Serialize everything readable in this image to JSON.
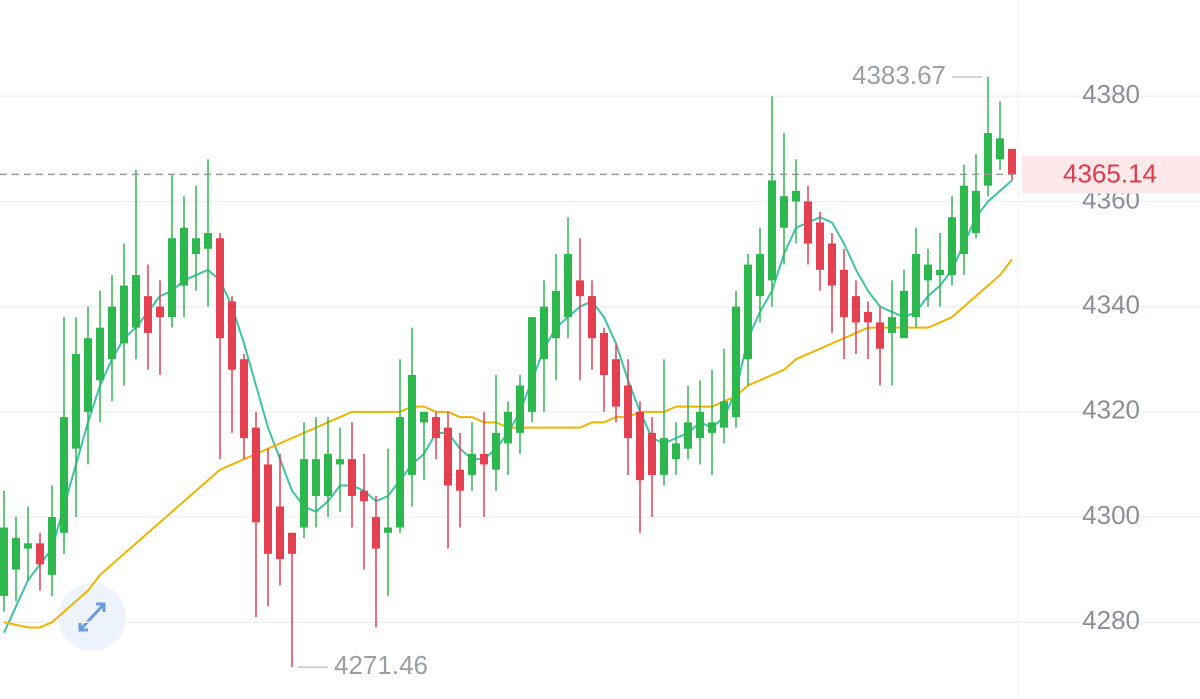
{
  "chart_data": {
    "type": "candlestick",
    "ylim": [
      4265.4,
      4398.3
    ],
    "yticks": [
      4280,
      4300,
      4320,
      4340,
      4360,
      4380
    ],
    "grid": true,
    "up_color": "#2db84d",
    "down_color": "#e5404f",
    "open": [
      4285,
      4290,
      4294,
      4295,
      4289,
      4297,
      4313,
      4320,
      4326,
      4330,
      4333,
      4336,
      4342,
      4340,
      4338,
      4344,
      4350,
      4351,
      4353,
      4341,
      4330,
      4317,
      4310,
      4302,
      4297,
      4298,
      4304,
      4304,
      4310,
      4311,
      4305,
      4300,
      4297,
      4298,
      4308,
      4318,
      4319,
      4317,
      4309,
      4308,
      4312,
      4309,
      4314,
      4316,
      4320,
      4330,
      4334,
      4338,
      4345,
      4342,
      4335,
      4330,
      4325,
      4320,
      4316,
      4308,
      4311,
      4313,
      4315,
      4316,
      4317,
      4319,
      4330,
      4342,
      4345,
      4355,
      4360,
      4360,
      4356,
      4352,
      4347,
      4342,
      4339,
      4337,
      4335,
      4334,
      4338,
      4345,
      4346,
      4346,
      4350,
      4354,
      4363,
      4368,
      4370
    ],
    "high": [
      4305,
      4300,
      4302,
      4297,
      4306,
      4338,
      4338,
      4340,
      4343,
      4346,
      4352,
      4366,
      4348,
      4345,
      4365,
      4361,
      4363,
      4368,
      4354,
      4342,
      4331,
      4320,
      4313,
      4312,
      4297,
      4318,
      4319,
      4319,
      4317,
      4318,
      4312,
      4304,
      4313,
      4330,
      4336,
      4320,
      4320,
      4320,
      4316,
      4318,
      4320,
      4327,
      4322,
      4327,
      4338,
      4345,
      4350,
      4357,
      4353,
      4345,
      4336,
      4333,
      4330,
      4322,
      4319,
      4330,
      4318,
      4325,
      4326,
      4328,
      4332,
      4343,
      4350,
      4355,
      4380,
      4373,
      4368,
      4363,
      4358,
      4354,
      4351,
      4345,
      4341,
      4340,
      4345,
      4347,
      4355,
      4351,
      4354,
      4361,
      4367,
      4369,
      4383.67,
      4379,
      4370
    ],
    "low": [
      4282,
      4284,
      4288,
      4286,
      4285,
      4293,
      4300,
      4310,
      4318,
      4322,
      4325,
      4330,
      4328,
      4327,
      4336,
      4338,
      4343,
      4340,
      4311,
      4316,
      4311,
      4281,
      4283,
      4287,
      4271.46,
      4296,
      4298,
      4300,
      4301,
      4298,
      4290,
      4279,
      4285,
      4297,
      4302,
      4307,
      4311,
      4294,
      4298,
      4305,
      4300,
      4305,
      4308,
      4312,
      4318,
      4320,
      4326,
      4334,
      4326,
      4328,
      4320,
      4318,
      4308,
      4297,
      4300,
      4306,
      4308,
      4311,
      4310,
      4308,
      4314,
      4317,
      4325,
      4337,
      4340,
      4348,
      4352,
      4348,
      4343,
      4335,
      4330,
      4331,
      4330,
      4325,
      4325,
      4334,
      4336,
      4340,
      4340,
      4344,
      4346,
      4353,
      4361,
      4366,
      4364
    ],
    "close": [
      4298,
      4296,
      4295,
      4291,
      4300,
      4319,
      4331,
      4334,
      4336,
      4340,
      4344,
      4346,
      4335,
      4338,
      4353,
      4355,
      4353,
      4354,
      4334,
      4328,
      4315,
      4299,
      4293,
      4292,
      4293,
      4311,
      4311,
      4312,
      4311,
      4304,
      4303,
      4294,
      4298,
      4319,
      4327,
      4320,
      4315,
      4306,
      4305,
      4312,
      4310,
      4316,
      4320,
      4325,
      4338,
      4340,
      4343,
      4350,
      4342,
      4334,
      4327,
      4321,
      4315,
      4307,
      4308,
      4315,
      4314,
      4318,
      4320,
      4318,
      4322,
      4340,
      4348,
      4350,
      4364,
      4361,
      4362,
      4352,
      4347,
      4344,
      4338,
      4337,
      4337,
      4332,
      4338,
      4343,
      4350,
      4348,
      4347,
      4357,
      4363,
      4362,
      4373,
      4372,
      4365.14
    ],
    "series": [
      {
        "color": "#3cc4a6",
        "values": [
          4278,
          4283,
          4288,
          4291,
          4294,
          4302,
          4310,
          4318,
          4325,
          4330,
          4334,
          4336,
          4339,
          4342,
          4343,
          4345,
          4346,
          4347,
          4345,
          4340,
          4333,
          4325,
          4317,
          4311,
          4305,
          4302,
          4301,
          4303,
          4306,
          4306,
          4305,
          4303,
          4304,
          4307,
          4310,
          4312,
          4316,
          4316,
          4313,
          4311,
          4311,
          4313,
          4316,
          4320,
          4326,
          4332,
          4336,
          4338,
          4340,
          4341,
          4338,
          4333,
          4326,
          4320,
          4315,
          4314,
          4315,
          4316,
          4318,
          4317,
          4319,
          4324,
          4334,
          4339,
          4343,
          4350,
          4355,
          4356,
          4357,
          4356,
          4352,
          4347,
          4343,
          4340,
          4339,
          4338,
          4339,
          4342,
          4344,
          4347,
          4352,
          4357,
          4360,
          4362,
          4364
        ]
      },
      {
        "color": "#f0b400",
        "values": [
          4280,
          4279.5,
          4279,
          4279,
          4280,
          4282,
          4284,
          4286,
          4289,
          4291,
          4293,
          4295,
          4297,
          4299,
          4301,
          4303,
          4305,
          4307,
          4309,
          4310,
          4311,
          4312,
          4313,
          4314,
          4315,
          4316,
          4317,
          4318,
          4319,
          4320,
          4320,
          4320,
          4320,
          4320,
          4321,
          4321,
          4320,
          4320,
          4319,
          4319,
          4318,
          4318,
          4317,
          4317,
          4317,
          4317,
          4317,
          4317,
          4317,
          4318,
          4318,
          4319,
          4319,
          4320,
          4320,
          4320,
          4321,
          4321,
          4321,
          4321,
          4322,
          4323,
          4325,
          4326,
          4327,
          4328,
          4330,
          4331,
          4332,
          4333,
          4334,
          4335,
          4336,
          4336,
          4336,
          4336,
          4336,
          4336,
          4337,
          4338,
          4340,
          4342,
          4344,
          4346,
          4349
        ]
      }
    ]
  }
}
